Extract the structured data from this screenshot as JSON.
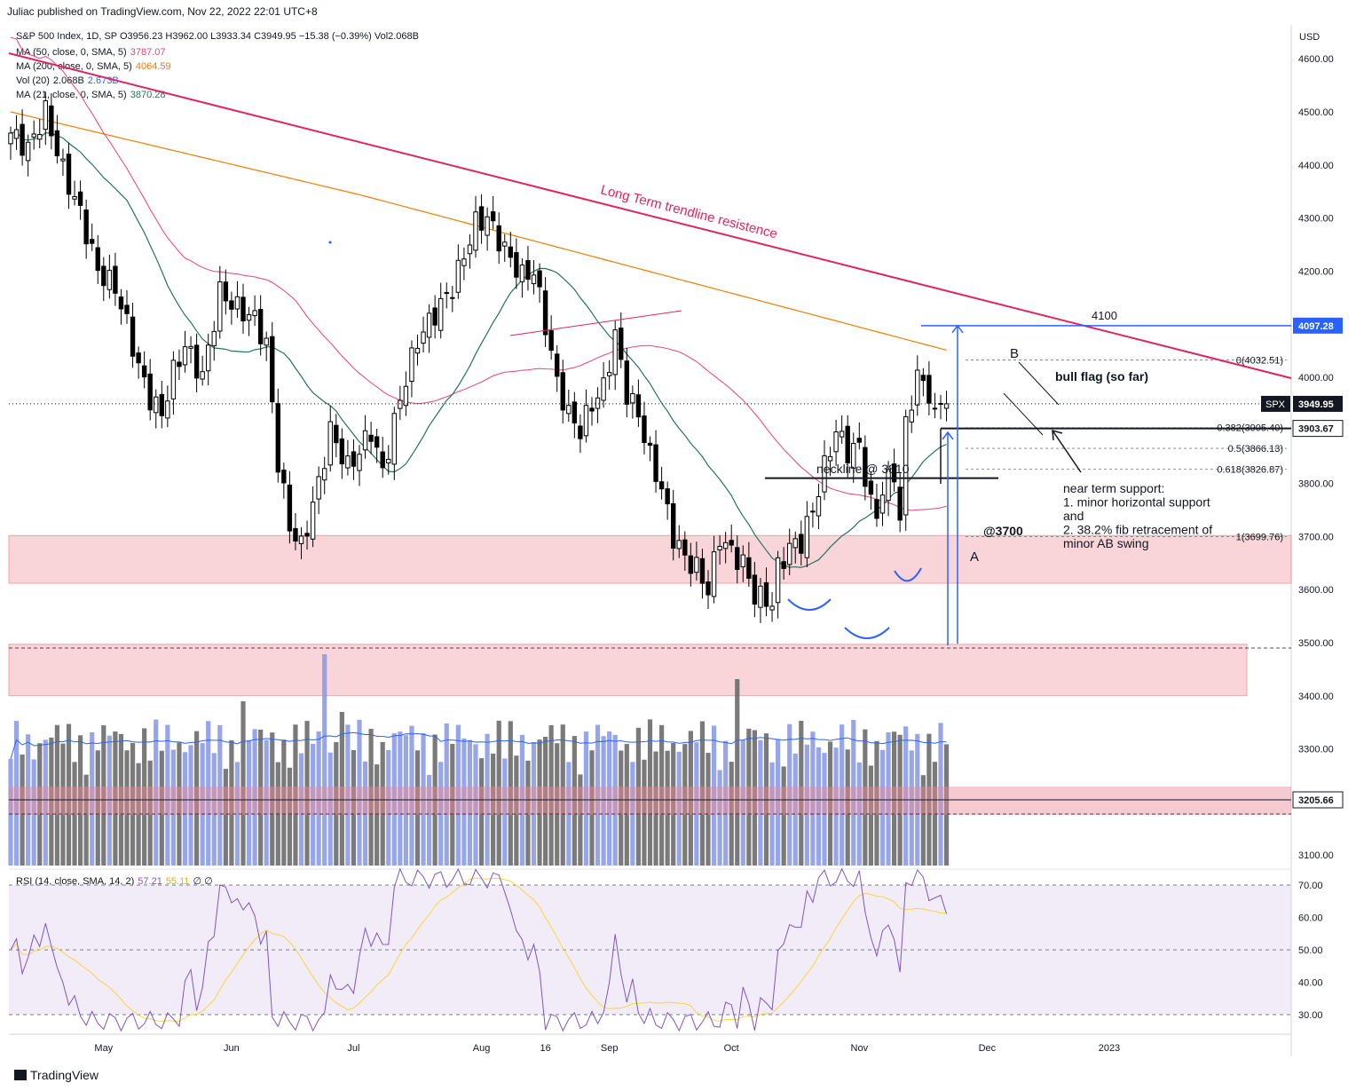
{
  "header": "Juliac published on TradingView.com, Nov 22, 2022 22:01 UTC+8",
  "legend": {
    "line1": "S&P 500 Index, 1D, SP  O3956.23  H3962.00  L3933.34  C3949.95  −15.38 (−0.39%)  Vol2.068B",
    "ma50_label": "MA (50, close, 0, SMA, 5)",
    "ma50_value": "3787.07",
    "ma200_label": "MA (200, close, 0, SMA, 5)",
    "ma200_value": "4064.59",
    "vol_label": "Vol (20)",
    "vol_value": "2.068B",
    "vol_ma": "2.673B",
    "ma21_label": "MA (21, close, 0, SMA, 5)",
    "ma21_value": "3870.28",
    "rsi_label": "RSI (14, close, SMA, 14, 2)",
    "rsi_value": "57.21",
    "rsi_ma": "55.11",
    "rsi_extra": "∅  ∅"
  },
  "footer": "TradingView",
  "colors": {
    "up": "#ffffff",
    "down": "#000000",
    "ma50": "#ec407a",
    "ma200": "#f57c00",
    "ma21": "#26735c",
    "trend": "#e0245e",
    "vol_up": "#8c9ce6",
    "vol_down": "#6b6b6b",
    "vol_ma": "#2962ff",
    "rsi": "#7e57c2",
    "rsi_ma": "#f5d742",
    "zone": "#f7c6cc",
    "blue": "#2962ff"
  },
  "chart_data": {
    "type": "candlestick",
    "title": "S&P 500 Index, 1D, SP",
    "y_axis_unit": "USD",
    "price_ticks": [
      4600,
      4500,
      4400,
      4300,
      4200,
      4100,
      4000,
      3900,
      3800,
      3700,
      3600,
      3500,
      3400,
      3300,
      3200,
      3100
    ],
    "rsi_ticks": [
      70,
      60,
      50,
      40,
      30
    ],
    "x_labels": [
      "May",
      "Jun",
      "Jul",
      "Aug",
      "16",
      "Sep",
      "Oct",
      "Nov",
      "Dec",
      "2023"
    ],
    "x_label_days": [
      16,
      38,
      59,
      81,
      92,
      103,
      124,
      146,
      168,
      189
    ],
    "close_key": [
      [
        0,
        4460
      ],
      [
        3,
        4430
      ],
      [
        6,
        4500
      ],
      [
        9,
        4390
      ],
      [
        12,
        4310
      ],
      [
        15,
        4200
      ],
      [
        18,
        4170
      ],
      [
        20,
        4100
      ],
      [
        22,
        4020
      ],
      [
        24,
        3960
      ],
      [
        26,
        3930
      ],
      [
        28,
        4010
      ],
      [
        30,
        4060
      ],
      [
        33,
        4000
      ],
      [
        36,
        4160
      ],
      [
        39,
        4130
      ],
      [
        42,
        4110
      ],
      [
        44,
        4060
      ],
      [
        46,
        3840
      ],
      [
        48,
        3720
      ],
      [
        50,
        3680
      ],
      [
        53,
        3800
      ],
      [
        55,
        3900
      ],
      [
        58,
        3830
      ],
      [
        60,
        3860
      ],
      [
        62,
        3900
      ],
      [
        64,
        3820
      ],
      [
        67,
        3960
      ],
      [
        70,
        4070
      ],
      [
        73,
        4120
      ],
      [
        76,
        4170
      ],
      [
        78,
        4230
      ],
      [
        80,
        4290
      ],
      [
        82,
        4300
      ],
      [
        85,
        4240
      ],
      [
        88,
        4190
      ],
      [
        90,
        4200
      ],
      [
        92,
        4100
      ],
      [
        94,
        3990
      ],
      [
        96,
        3930
      ],
      [
        98,
        3900
      ],
      [
        100,
        3950
      ],
      [
        102,
        3980
      ],
      [
        104,
        4080
      ],
      [
        106,
        3970
      ],
      [
        108,
        3930
      ],
      [
        110,
        3850
      ],
      [
        112,
        3790
      ],
      [
        114,
        3700
      ],
      [
        116,
        3660
      ],
      [
        118,
        3640
      ],
      [
        120,
        3600
      ],
      [
        122,
        3700
      ],
      [
        124,
        3670
      ],
      [
        126,
        3650
      ],
      [
        128,
        3590
      ],
      [
        130,
        3580
      ],
      [
        131,
        3575
      ],
      [
        132,
        3640
      ],
      [
        134,
        3680
      ],
      [
        136,
        3690
      ],
      [
        138,
        3750
      ],
      [
        140,
        3830
      ],
      [
        142,
        3900
      ],
      [
        144,
        3860
      ],
      [
        146,
        3870
      ],
      [
        148,
        3760
      ],
      [
        149,
        3740
      ],
      [
        150,
        3790
      ],
      [
        152,
        3820
      ],
      [
        153,
        3730
      ],
      [
        154,
        3910
      ],
      [
        155,
        3960
      ],
      [
        156,
        4000
      ],
      [
        157,
        3990
      ],
      [
        158,
        3970
      ],
      [
        159,
        3920
      ],
      [
        160,
        3960
      ],
      [
        161,
        3950
      ]
    ],
    "annotations": [
      "Long Term trendline resistence",
      "neckline @ 3810",
      "@3700",
      "A",
      "B",
      "bull flag (so far)",
      "4100",
      "near term support:",
      "1. minor horizontal support",
      "and",
      "2. 38.2% fib retracement of",
      "minor AB swing"
    ],
    "fib_levels": [
      {
        "label": "0(4032.51)",
        "value": 4032.51
      },
      {
        "label": "0.382(3905.40)",
        "value": 3905.4
      },
      {
        "label": "0.5(3866.13)",
        "value": 3866.13
      },
      {
        "label": "0.618(3826.87)",
        "value": 3826.87
      },
      {
        "label": "1(3699.76)",
        "value": 3699.76
      }
    ],
    "price_labels": [
      {
        "text": "4097.28",
        "value": 4097.28,
        "style": "blue"
      },
      {
        "text": "3949.95",
        "value": 3949.95,
        "style": "dark",
        "tag": "SPX"
      },
      {
        "text": "3903.67",
        "value": 3903.67,
        "style": "outline"
      },
      {
        "text": "3205.66",
        "value": 3205.66,
        "style": "outline"
      }
    ],
    "support_zones": [
      [
        3612,
        3702
      ],
      [
        3400,
        3497
      ]
    ],
    "neckline": 3810
  }
}
